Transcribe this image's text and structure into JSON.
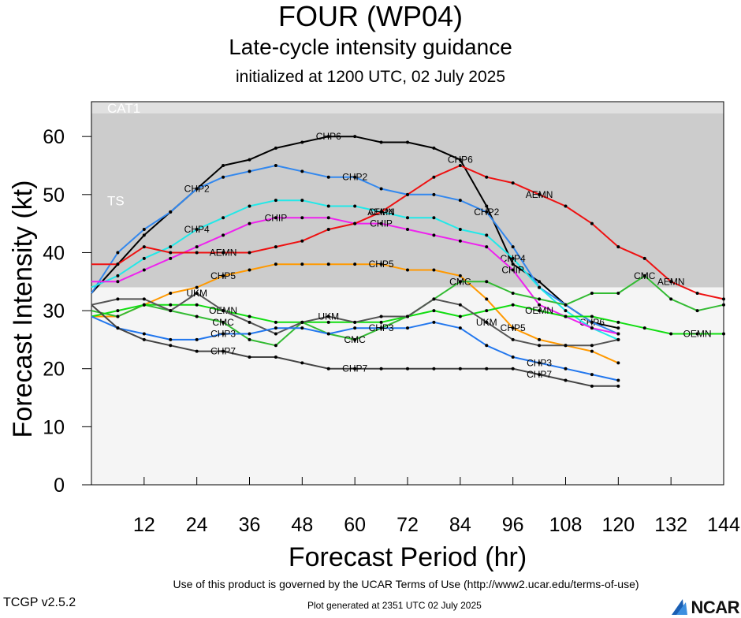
{
  "header": {
    "title": "FOUR (WP04)",
    "subtitle": "Late-cycle intensity guidance",
    "init": "initialized at 1200 UTC, 02 July 2025"
  },
  "footer": {
    "terms": "Use of this product is governed by the UCAR Terms of Use (http://www2.ucar.edu/terms-of-use)",
    "version": "TCGP v2.5.2",
    "generated": "Plot generated at 2351 UTC   02 July 2025",
    "logo": "NCAR"
  },
  "chart_data": {
    "type": "line",
    "xlabel": "Forecast Period (hr)",
    "ylabel": "Forecast Intensity (kt)",
    "xlim": [
      0,
      144
    ],
    "ylim": [
      0,
      66
    ],
    "xticks": [
      12,
      24,
      36,
      48,
      60,
      72,
      84,
      96,
      108,
      120,
      132,
      144
    ],
    "yticks": [
      0,
      10,
      20,
      30,
      40,
      50,
      60
    ],
    "bands": [
      {
        "label": "CAT1",
        "from": 64,
        "to": 66,
        "color": "#e0e0e0"
      },
      {
        "label": "TS",
        "from": 34,
        "to": 64,
        "color": "#cccccc"
      },
      {
        "label": "",
        "from": 0,
        "to": 34,
        "color": "#f5f5f5"
      }
    ],
    "series": [
      {
        "name": "CHP6",
        "color": "#000000",
        "label_at": [
          54,
          84,
          114
        ],
        "x": [
          0,
          6,
          12,
          18,
          24,
          30,
          36,
          42,
          48,
          54,
          60,
          66,
          72,
          78,
          84,
          90,
          96,
          102,
          108,
          114,
          120
        ],
        "y": [
          33,
          38,
          43,
          47,
          51,
          55,
          56,
          58,
          59,
          60,
          60,
          59,
          59,
          58,
          56,
          48,
          38,
          35,
          31,
          28,
          27
        ]
      },
      {
        "name": "CHP2",
        "color": "#3388ee",
        "label_at": [
          24,
          60,
          90
        ],
        "x": [
          0,
          6,
          12,
          18,
          24,
          30,
          36,
          42,
          48,
          54,
          60,
          66,
          72,
          78,
          84,
          90,
          96,
          102,
          108,
          114,
          120
        ],
        "y": [
          33,
          40,
          44,
          47,
          51,
          53,
          54,
          55,
          54,
          53,
          53,
          51,
          50,
          50,
          49,
          47,
          41,
          34,
          31,
          28,
          26
        ]
      },
      {
        "name": "CHP4",
        "color": "#22e8e8",
        "label_at": [
          24,
          66,
          96
        ],
        "x": [
          0,
          6,
          12,
          18,
          24,
          30,
          36,
          42,
          48,
          54,
          60,
          66,
          72,
          78,
          84,
          90,
          96,
          102,
          108,
          114,
          120
        ],
        "y": [
          34,
          36,
          39,
          41,
          44,
          46,
          48,
          49,
          49,
          48,
          48,
          47,
          46,
          46,
          44,
          43,
          39,
          34,
          30,
          27,
          25
        ]
      },
      {
        "name": "CHIP",
        "color": "#ee22ee",
        "label_at": [
          42,
          66,
          96
        ],
        "x": [
          0,
          6,
          12,
          18,
          24,
          30,
          36,
          42,
          48,
          54,
          60,
          66,
          72,
          78,
          84,
          90,
          96,
          102,
          108,
          114,
          120
        ],
        "y": [
          35,
          35,
          37,
          39,
          41,
          43,
          45,
          46,
          46,
          46,
          45,
          45,
          44,
          43,
          42,
          41,
          37,
          31,
          29,
          27,
          26
        ]
      },
      {
        "name": "AEMN",
        "color": "#ee1111",
        "label_at": [
          30,
          66,
          102,
          132
        ],
        "x": [
          0,
          6,
          12,
          18,
          24,
          30,
          36,
          42,
          48,
          54,
          60,
          66,
          72,
          78,
          84,
          90,
          96,
          102,
          108,
          114,
          120,
          126,
          132,
          138,
          144
        ],
        "y": [
          38,
          38,
          41,
          40,
          40,
          40,
          40,
          41,
          42,
          44,
          45,
          47,
          50,
          53,
          55,
          53,
          52,
          50,
          48,
          45,
          41,
          39,
          35,
          33,
          32
        ]
      },
      {
        "name": "CHP5",
        "color": "#ff9900",
        "label_at": [
          30,
          66,
          96
        ],
        "x": [
          0,
          6,
          12,
          18,
          24,
          30,
          36,
          42,
          48,
          54,
          60,
          66,
          72,
          78,
          84,
          90,
          96,
          102,
          108,
          114,
          120
        ],
        "y": [
          29,
          29,
          31,
          33,
          34,
          36,
          37,
          38,
          38,
          38,
          38,
          38,
          37,
          37,
          36,
          32,
          27,
          25,
          24,
          23,
          21
        ]
      },
      {
        "name": "CMC",
        "color": "#33bb33",
        "label_at": [
          30,
          60,
          84,
          126
        ],
        "x": [
          0,
          6,
          12,
          18,
          24,
          30,
          36,
          42,
          48,
          54,
          60,
          66,
          72,
          78,
          84,
          90,
          96,
          102,
          108,
          114,
          120,
          126,
          132,
          138,
          144
        ],
        "y": [
          30,
          29,
          31,
          30,
          29,
          28,
          25,
          24,
          28,
          26,
          25,
          27,
          29,
          32,
          35,
          35,
          33,
          32,
          31,
          33,
          33,
          36,
          32,
          30,
          31
        ]
      },
      {
        "name": "OEMN",
        "color": "#11dd11",
        "label_at": [
          30,
          102,
          138
        ],
        "x": [
          0,
          6,
          12,
          18,
          24,
          30,
          36,
          42,
          48,
          54,
          60,
          66,
          72,
          78,
          84,
          90,
          96,
          102,
          108,
          114,
          120,
          126,
          132,
          138,
          144
        ],
        "y": [
          29,
          30,
          31,
          31,
          31,
          30,
          29,
          28,
          28,
          28,
          28,
          28,
          29,
          30,
          29,
          30,
          31,
          30,
          29,
          29,
          28,
          27,
          26,
          26,
          26
        ]
      },
      {
        "name": "UKM",
        "color": "#555555",
        "label_at": [
          24,
          54,
          90
        ],
        "x": [
          0,
          6,
          12,
          18,
          24,
          30,
          36,
          42,
          48,
          54,
          60,
          66,
          72,
          78,
          84,
          90,
          96,
          102,
          108,
          114,
          120
        ],
        "y": [
          31,
          32,
          32,
          30,
          33,
          30,
          28,
          26,
          28,
          29,
          28,
          29,
          29,
          32,
          31,
          28,
          25,
          24,
          24,
          24,
          25
        ]
      },
      {
        "name": "CHP3",
        "color": "#2277ee",
        "label_at": [
          30,
          66,
          102
        ],
        "x": [
          0,
          6,
          12,
          18,
          24,
          30,
          36,
          42,
          48,
          54,
          60,
          66,
          72,
          78,
          84,
          90,
          96,
          102,
          108,
          114,
          120
        ],
        "y": [
          29,
          27,
          26,
          25,
          25,
          26,
          26,
          27,
          27,
          26,
          27,
          27,
          27,
          28,
          27,
          24,
          22,
          21,
          20,
          19,
          18
        ]
      },
      {
        "name": "CHP7",
        "color": "#444444",
        "label_at": [
          30,
          60,
          102
        ],
        "x": [
          0,
          6,
          12,
          18,
          24,
          30,
          36,
          42,
          48,
          54,
          60,
          66,
          72,
          78,
          84,
          90,
          96,
          102,
          108,
          114,
          120
        ],
        "y": [
          31,
          27,
          25,
          24,
          23,
          23,
          22,
          22,
          21,
          20,
          20,
          20,
          20,
          20,
          20,
          20,
          20,
          19,
          18,
          17,
          17
        ]
      }
    ]
  }
}
